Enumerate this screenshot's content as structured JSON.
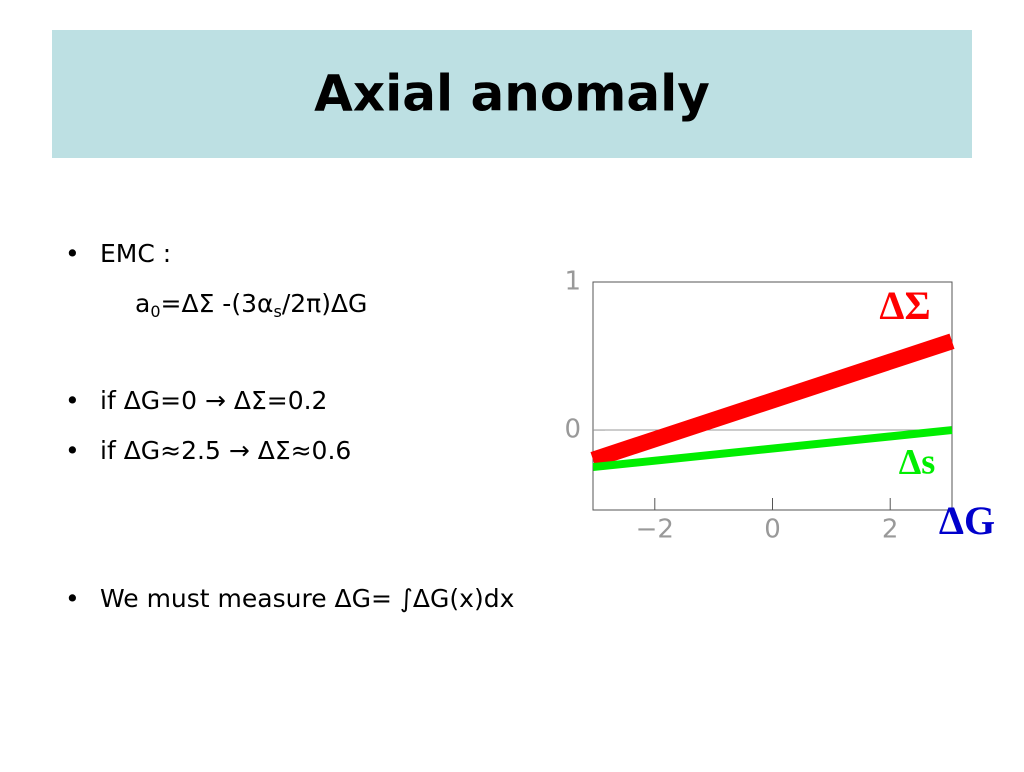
{
  "header": {
    "title": "Axial anomaly"
  },
  "bullets": [
    {
      "text": "EMC :"
    },
    {
      "formula": {
        "a": "a",
        "a_sub": "0",
        "mid": "=ΔΣ -(3α",
        "s_sub": "s",
        "end": "/2π)ΔG"
      }
    },
    {
      "text": "if ΔG=0  →  ΔΣ=0.2"
    },
    {
      "text": "if ΔG≈2.5  →  ΔΣ≈0.6"
    },
    {
      "text": "We must measure ΔG= ∫ΔG(x)dx",
      "color": "#ff0000"
    }
  ],
  "chart_data": {
    "type": "line",
    "x_label": "ΔG",
    "x": [
      -3.05,
      3.05
    ],
    "series": [
      {
        "name": "ΔΣ",
        "color": "#ff0000",
        "values": [
          -0.2,
          0.6
        ]
      },
      {
        "name": "Δs",
        "color": "#00ee00",
        "values": [
          -0.25,
          0.0
        ]
      }
    ],
    "xlim": [
      -3.05,
      3.05
    ],
    "ylim": [
      -0.54,
      1
    ],
    "xticks": [
      {
        "value": -2,
        "label": "−2"
      },
      0,
      2
    ],
    "yticks": [
      0,
      1
    ],
    "zero_line": true
  }
}
